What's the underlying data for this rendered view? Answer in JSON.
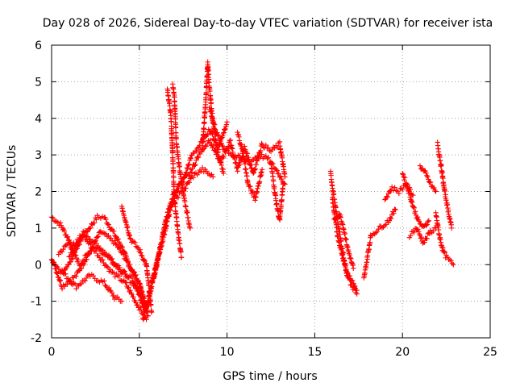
{
  "chart_data": {
    "type": "scatter",
    "title": "Day 028 of 2026, Sidereal Day-to-day VTEC variation (SDTVAR) for receiver ista",
    "xlabel": "GPS time / hours",
    "ylabel": "SDTVAR / TECUs",
    "xlim": [
      0,
      25
    ],
    "ylim": [
      -2,
      6
    ],
    "xticks": [
      0,
      5,
      10,
      15,
      20,
      25
    ],
    "yticks": [
      -2,
      -1,
      0,
      1,
      2,
      3,
      4,
      5,
      6
    ],
    "grid": true,
    "marker": "+",
    "color": "#ff0000",
    "tracks": [
      {
        "x": [
          0.0,
          0.5,
          1.2,
          2.0,
          2.6,
          3.0,
          3.5,
          4.0,
          4.4,
          5.0,
          5.5
        ],
        "y": [
          1.3,
          1.1,
          0.5,
          0.9,
          1.3,
          1.3,
          0.9,
          0.5,
          0.0,
          -0.5,
          -1.4
        ]
      },
      {
        "x": [
          0.0,
          0.6,
          1.4,
          2.0,
          2.8,
          3.6,
          4.3,
          5.0,
          5.4
        ],
        "y": [
          0.2,
          -0.6,
          -0.3,
          0.2,
          0.9,
          0.6,
          0.1,
          -0.5,
          -1.2
        ]
      },
      {
        "x": [
          0.2,
          0.8,
          1.4,
          2.2,
          3.0,
          3.6,
          4.0
        ],
        "y": [
          0.0,
          -0.3,
          -0.6,
          -0.3,
          -0.5,
          -0.9,
          -1.0
        ]
      },
      {
        "x": [
          0.4,
          1.0,
          1.6,
          2.4,
          3.2,
          4.0,
          4.8,
          5.4
        ],
        "y": [
          0.3,
          0.6,
          0.0,
          0.5,
          0.3,
          -0.2,
          -0.6,
          -1.3
        ]
      },
      {
        "x": [
          0.6,
          1.2,
          1.8,
          2.6,
          3.4,
          4.2,
          4.9,
          5.4
        ],
        "y": [
          -0.2,
          0.2,
          0.8,
          0.3,
          -0.2,
          -0.5,
          -1.1,
          -1.5
        ]
      },
      {
        "x": [
          1.0,
          1.8,
          2.8,
          3.8,
          4.6,
          5.4
        ],
        "y": [
          0.2,
          0.9,
          0.4,
          -0.1,
          -0.4,
          -1.2
        ]
      },
      {
        "x": [
          4.0,
          4.5,
          5.0,
          5.4,
          5.7
        ],
        "y": [
          1.6,
          0.7,
          0.4,
          0.0,
          -1.3
        ]
      },
      {
        "x": [
          5.2,
          5.5,
          6.0,
          6.5,
          7.0,
          7.5,
          8.0,
          8.5,
          9.0,
          9.5,
          10.0
        ],
        "y": [
          -1.5,
          -1.0,
          0.0,
          1.2,
          2.0,
          2.3,
          3.0,
          3.3,
          3.7,
          3.2,
          3.9
        ]
      },
      {
        "x": [
          5.4,
          5.8,
          6.3,
          6.8,
          7.3,
          7.9,
          8.5,
          9.0,
          9.6,
          10.2
        ],
        "y": [
          -1.2,
          -0.3,
          0.6,
          1.6,
          2.2,
          2.5,
          3.1,
          3.4,
          2.8,
          3.4
        ]
      },
      {
        "x": [
          5.8,
          6.2,
          6.6,
          7.0,
          7.5,
          8.0,
          8.6,
          9.2
        ],
        "y": [
          -0.4,
          0.5,
          1.3,
          1.8,
          2.0,
          2.4,
          2.6,
          2.4
        ]
      },
      {
        "x": [
          6.6,
          6.8,
          6.9,
          7.0,
          7.2,
          7.4
        ],
        "y": [
          4.8,
          4.1,
          3.0,
          1.8,
          0.9,
          0.2
        ]
      },
      {
        "x": [
          6.9,
          7.0,
          7.1,
          7.3,
          7.6,
          7.9
        ],
        "y": [
          4.9,
          4.6,
          3.4,
          2.6,
          1.7,
          1.0
        ]
      },
      {
        "x": [
          8.6,
          8.8,
          8.9,
          9.0,
          9.2,
          9.5,
          9.8
        ],
        "y": [
          3.2,
          4.6,
          5.5,
          4.8,
          3.9,
          3.0,
          2.5
        ]
      },
      {
        "x": [
          9.0,
          9.4,
          9.8,
          10.3,
          10.8,
          11.3,
          11.8,
          12.3,
          12.8,
          13.3
        ],
        "y": [
          4.3,
          3.6,
          3.2,
          3.0,
          2.9,
          2.8,
          3.0,
          2.9,
          2.6,
          2.2
        ]
      },
      {
        "x": [
          10.2,
          10.6,
          11.0,
          11.5,
          12.0,
          12.5,
          13.0,
          13.3
        ],
        "y": [
          3.3,
          2.6,
          3.2,
          2.5,
          3.3,
          3.1,
          3.3,
          2.4
        ]
      },
      {
        "x": [
          10.6,
          10.9,
          11.2,
          11.6,
          12.0
        ],
        "y": [
          3.6,
          3.1,
          2.2,
          1.8,
          2.6
        ]
      },
      {
        "x": [
          12.5,
          12.8,
          13.0,
          13.2
        ],
        "y": [
          2.8,
          1.7,
          1.2,
          2.2
        ]
      },
      {
        "x": [
          15.9,
          16.2,
          16.5,
          16.8,
          17.1,
          17.4
        ],
        "y": [
          2.5,
          1.5,
          0.6,
          -0.2,
          -0.6,
          -0.7
        ]
      },
      {
        "x": [
          16.0,
          16.3,
          16.6,
          16.9,
          17.2,
          17.4
        ],
        "y": [
          1.8,
          0.8,
          0.2,
          -0.3,
          -0.5,
          -0.8
        ]
      },
      {
        "x": [
          16.1,
          16.4,
          16.6,
          16.9,
          17.2
        ],
        "y": [
          1.2,
          1.4,
          1.1,
          0.4,
          -0.1
        ]
      },
      {
        "x": [
          17.8,
          18.2,
          18.7,
          19.2,
          19.6
        ],
        "y": [
          -0.4,
          0.8,
          1.0,
          1.2,
          1.5
        ]
      },
      {
        "x": [
          19.0,
          19.4,
          19.8,
          20.2,
          20.6
        ],
        "y": [
          1.8,
          2.1,
          2.0,
          2.2,
          1.9
        ]
      },
      {
        "x": [
          20.0,
          20.3,
          20.6,
          20.9,
          21.2,
          21.5
        ],
        "y": [
          2.5,
          2.1,
          1.6,
          1.2,
          1.0,
          1.2
        ]
      },
      {
        "x": [
          20.4,
          20.8,
          21.2,
          21.6,
          21.9
        ],
        "y": [
          0.8,
          1.0,
          0.6,
          0.9,
          1.0
        ]
      },
      {
        "x": [
          21.0,
          21.3,
          21.6,
          21.9
        ],
        "y": [
          2.7,
          2.5,
          2.2,
          2.0
        ]
      },
      {
        "x": [
          21.9,
          22.1,
          22.3,
          22.5,
          22.7,
          22.9
        ],
        "y": [
          1.4,
          0.8,
          0.4,
          0.2,
          0.1,
          0.0
        ]
      },
      {
        "x": [
          22.0,
          22.2,
          22.4,
          22.6,
          22.8
        ],
        "y": [
          3.3,
          2.7,
          2.0,
          1.5,
          1.0
        ]
      }
    ]
  }
}
